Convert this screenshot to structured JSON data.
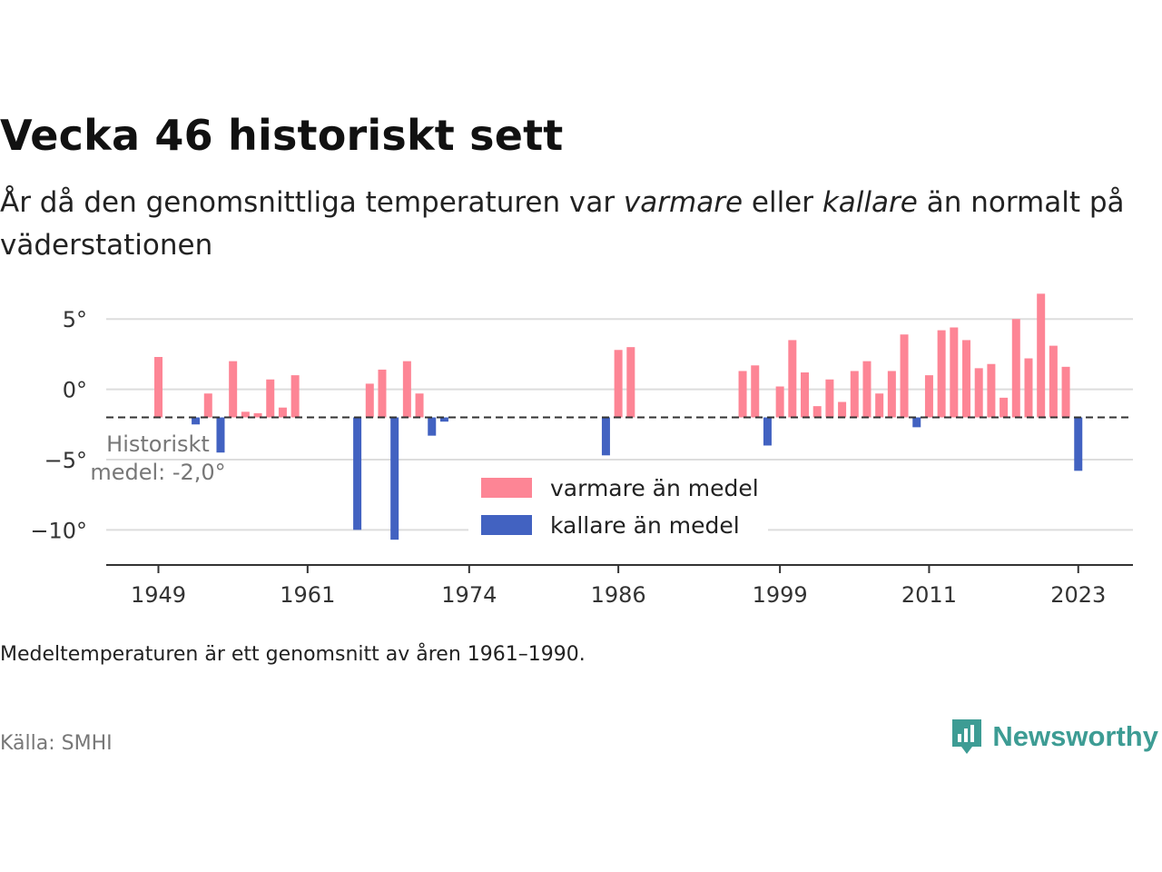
{
  "header": {
    "title": "Vecka 46 historiskt sett",
    "subtitle_parts": [
      "År då den genomsnittliga temperaturen var ",
      "varmare",
      " eller ",
      "kallare",
      " än normalt på väderstationen"
    ]
  },
  "footer": {
    "note": "Medeltemperaturen är ett genomsnitt av åren 1961–1990.",
    "source": "Källa: SMHI",
    "logo_text": "Newsworthy"
  },
  "colors": {
    "warmer": "#fd8595",
    "colder": "#4262c1",
    "baseline": "#333333",
    "grid": "#dddddd",
    "logo": "#3d9c94"
  },
  "chart_data": {
    "type": "bar",
    "baseline": -2.0,
    "baseline_label": [
      "Historiskt",
      "medel: -2,0°"
    ],
    "legend": [
      {
        "key": "warm",
        "label": "varmare än medel"
      },
      {
        "key": "cold",
        "label": "kallare än medel"
      }
    ],
    "ylim": [
      -12.5,
      6.5
    ],
    "yticks": [
      5,
      0,
      -5,
      -10
    ],
    "ytick_labels": [
      "5°",
      "0°",
      "−5°",
      "−10°"
    ],
    "xlim": [
      1944.8,
      2027.4
    ],
    "xticks": [
      1949,
      1961,
      1974,
      1986,
      1999,
      2011,
      2023
    ],
    "xtick_labels": [
      "1949",
      "1961",
      "1974",
      "1986",
      "1999",
      "2011",
      "2023"
    ],
    "xlabel": "",
    "ylabel": "",
    "years": [
      1949,
      1952,
      1953,
      1954,
      1955,
      1956,
      1957,
      1958,
      1959,
      1960,
      1965,
      1966,
      1967,
      1968,
      1969,
      1970,
      1971,
      1972,
      1985,
      1986,
      1987,
      1996,
      1997,
      1998,
      1999,
      2000,
      2001,
      2002,
      2003,
      2004,
      2005,
      2006,
      2007,
      2008,
      2009,
      2010,
      2011,
      2012,
      2013,
      2014,
      2015,
      2016,
      2017,
      2018,
      2019,
      2020,
      2021,
      2022,
      2023
    ],
    "values": [
      2.3,
      -2.5,
      -0.3,
      -4.5,
      2.0,
      -1.6,
      -1.7,
      0.7,
      -1.3,
      1.0,
      -10.0,
      0.4,
      1.4,
      -10.7,
      2.0,
      -0.3,
      -3.3,
      -2.3,
      -4.7,
      2.8,
      3.0,
      1.3,
      1.7,
      -4.0,
      0.2,
      3.5,
      1.2,
      -1.2,
      0.7,
      -0.9,
      1.3,
      2.0,
      -0.3,
      1.3,
      3.9,
      -2.7,
      1.0,
      4.2,
      4.4,
      3.5,
      1.5,
      1.8,
      -0.6,
      5.0,
      2.2,
      6.8,
      3.1,
      1.6,
      -5.8
    ]
  }
}
